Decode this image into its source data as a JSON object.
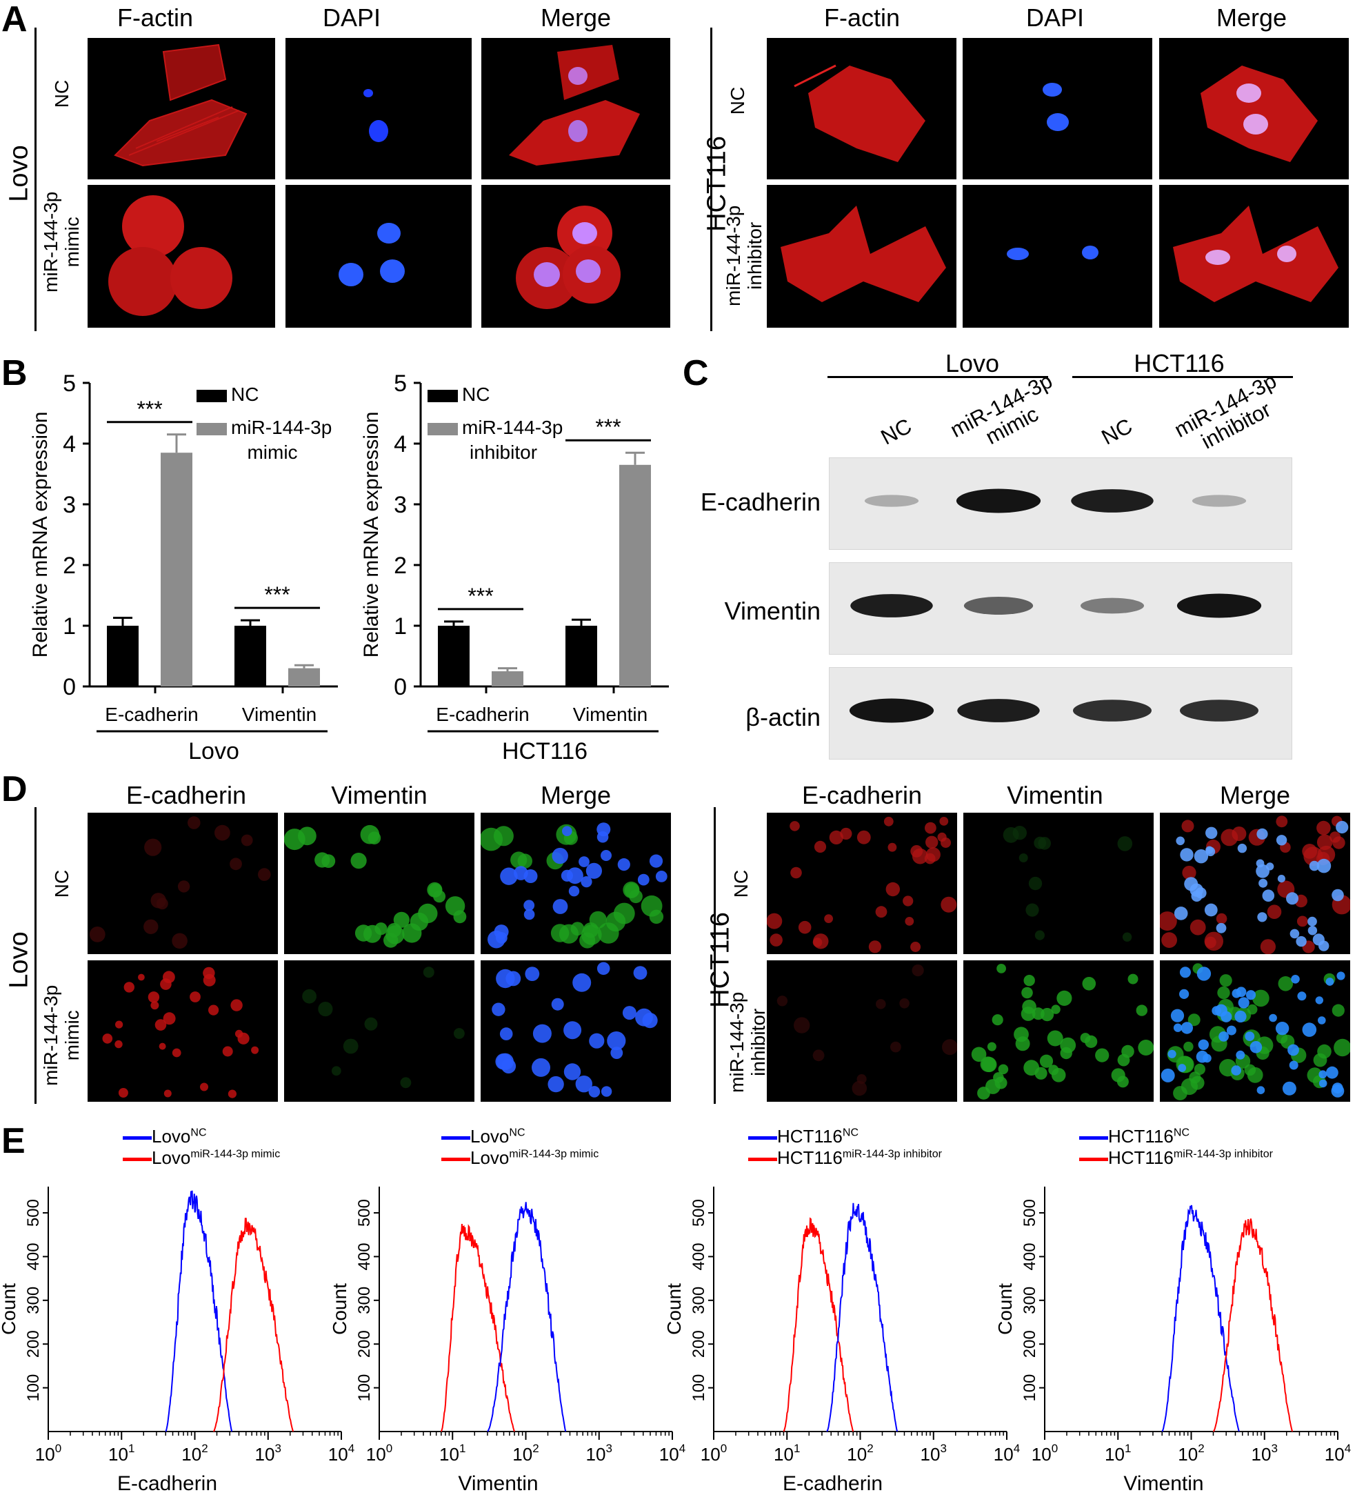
{
  "panels": {
    "A": "A",
    "B": "B",
    "C": "C",
    "D": "D",
    "E": "E"
  },
  "panelA": {
    "columns": [
      "F-actin",
      "DAPI",
      "Merge"
    ],
    "left": {
      "cell": "Lovo",
      "rows": [
        "NC",
        "miR-144-3p\nmimic"
      ]
    },
    "right": {
      "cell": "HCT116",
      "rows": [
        "NC",
        "miR-144-3p\ninhibitor"
      ]
    }
  },
  "panelD": {
    "columns": [
      "E-cadherin",
      "Vimentin",
      "Merge"
    ],
    "left": {
      "cell": "Lovo",
      "rows": [
        "NC",
        "miR-144-3p\nmimic"
      ]
    },
    "right": {
      "cell": "HCT116",
      "rows": [
        "NC",
        "miR-144-3p\ninhibitor"
      ]
    }
  },
  "panelC": {
    "groups": [
      "Lovo",
      "HCT116"
    ],
    "lanes": [
      "NC",
      "miR-144-3p\nmimic",
      "NC",
      "miR-144-3p\ninhibitor"
    ],
    "rows": [
      "E-cadherin",
      "Vimentin",
      "β-actin"
    ],
    "band_intensity": {
      "E-cadherin": [
        0.15,
        0.95,
        0.9,
        0.15
      ],
      "Vimentin": [
        0.9,
        0.55,
        0.4,
        0.95
      ],
      "β-actin": [
        0.95,
        0.9,
        0.8,
        0.8
      ]
    }
  },
  "chart_data": [
    {
      "type": "bar",
      "group": "Lovo",
      "categories": [
        "E-cadherin",
        "Vimentin"
      ],
      "series": [
        {
          "name": "NC",
          "values": [
            1.0,
            1.0
          ],
          "errors": [
            0.13,
            0.09
          ],
          "color": "#000000"
        },
        {
          "name": "miR-144-3p mimic",
          "values": [
            3.85,
            0.3
          ],
          "errors": [
            0.3,
            0.05
          ],
          "color": "#8c8c8c"
        }
      ],
      "significance": [
        "***",
        "***"
      ],
      "ylabel": "Relative mRNA expression",
      "yticks": [
        0,
        1,
        2,
        3,
        4,
        5
      ],
      "ylim": [
        0,
        5
      ],
      "legend": "top-right"
    },
    {
      "type": "bar",
      "group": "HCT116",
      "categories": [
        "E-cadherin",
        "Vimentin"
      ],
      "series": [
        {
          "name": "NC",
          "values": [
            1.0,
            1.0
          ],
          "errors": [
            0.07,
            0.1
          ],
          "color": "#000000"
        },
        {
          "name": "miR-144-3p inhibitor",
          "values": [
            0.25,
            3.65
          ],
          "errors": [
            0.05,
            0.2
          ],
          "color": "#8c8c8c"
        }
      ],
      "significance": [
        "***",
        "***"
      ],
      "ylabel": "Relative mRNA expression",
      "yticks": [
        0,
        1,
        2,
        3,
        4,
        5
      ],
      "ylim": [
        0,
        5
      ],
      "legend": "top-left"
    },
    {
      "type": "line",
      "subtype": "flow-cytometry-histogram",
      "xlabel": "E-cadherin",
      "ylabel": "Count",
      "xscale": "log",
      "xlim": [
        1,
        10000
      ],
      "yticks": [
        100,
        200,
        300,
        400,
        500
      ],
      "ylim": [
        0,
        560
      ],
      "legend": [
        {
          "base": "Lovo",
          "sup": "NC",
          "color": "#0000ff"
        },
        {
          "base": "Lovo",
          "sup": "miR-144-3p mimic",
          "color": "#ff0000"
        }
      ],
      "series": [
        {
          "name": "Lovo NC",
          "color": "#0000ff",
          "peak_x": 90,
          "peak_y": 530,
          "start_x": 40,
          "end_x": 320
        },
        {
          "name": "Lovo miR-144-3p mimic",
          "color": "#ff0000",
          "peak_x": 500,
          "peak_y": 470,
          "start_x": 180,
          "end_x": 2200
        }
      ]
    },
    {
      "type": "line",
      "subtype": "flow-cytometry-histogram",
      "xlabel": "Vimentin",
      "ylabel": "Count",
      "xscale": "log",
      "xlim": [
        1,
        10000
      ],
      "yticks": [
        100,
        200,
        300,
        400,
        500
      ],
      "ylim": [
        0,
        560
      ],
      "legend": [
        {
          "base": "Lovo",
          "sup": "NC",
          "color": "#0000ff"
        },
        {
          "base": "Lovo",
          "sup": "miR-144-3p mimic",
          "color": "#ff0000"
        }
      ],
      "series": [
        {
          "name": "Lovo miR-144-3p mimic",
          "color": "#ff0000",
          "peak_x": 14,
          "peak_y": 460,
          "start_x": 7,
          "end_x": 70
        },
        {
          "name": "Lovo NC",
          "color": "#0000ff",
          "peak_x": 100,
          "peak_y": 510,
          "start_x": 30,
          "end_x": 350
        }
      ]
    },
    {
      "type": "line",
      "subtype": "flow-cytometry-histogram",
      "xlabel": "E-cadherin",
      "ylabel": "Count",
      "xscale": "log",
      "xlim": [
        1,
        10000
      ],
      "yticks": [
        100,
        200,
        300,
        400,
        500
      ],
      "ylim": [
        0,
        560
      ],
      "legend": [
        {
          "base": "HCT116",
          "sup": "NC",
          "color": "#0000ff"
        },
        {
          "base": "HCT116",
          "sup": "miR-144-3p inhibitor",
          "color": "#ff0000"
        }
      ],
      "series": [
        {
          "name": "HCT116 miR-144-3p inhibitor",
          "color": "#ff0000",
          "peak_x": 20,
          "peak_y": 470,
          "start_x": 9,
          "end_x": 80
        },
        {
          "name": "HCT116 NC",
          "color": "#0000ff",
          "peak_x": 85,
          "peak_y": 510,
          "start_x": 35,
          "end_x": 320
        }
      ]
    },
    {
      "type": "line",
      "subtype": "flow-cytometry-histogram",
      "xlabel": "Vimentin",
      "ylabel": "Count",
      "xscale": "log",
      "xlim": [
        1,
        10000
      ],
      "yticks": [
        100,
        200,
        300,
        400,
        500
      ],
      "ylim": [
        0,
        560
      ],
      "legend": [
        {
          "base": "HCT116",
          "sup": "NC",
          "color": "#0000ff"
        },
        {
          "base": "HCT116",
          "sup": "miR-144-3p inhibitor",
          "color": "#ff0000"
        }
      ],
      "series": [
        {
          "name": "HCT116 NC",
          "color": "#0000ff",
          "peak_x": 100,
          "peak_y": 500,
          "start_x": 40,
          "end_x": 450
        },
        {
          "name": "HCT116 miR-144-3p inhibitor",
          "color": "#ff0000",
          "peak_x": 600,
          "peak_y": 470,
          "start_x": 200,
          "end_x": 2400
        }
      ]
    }
  ]
}
